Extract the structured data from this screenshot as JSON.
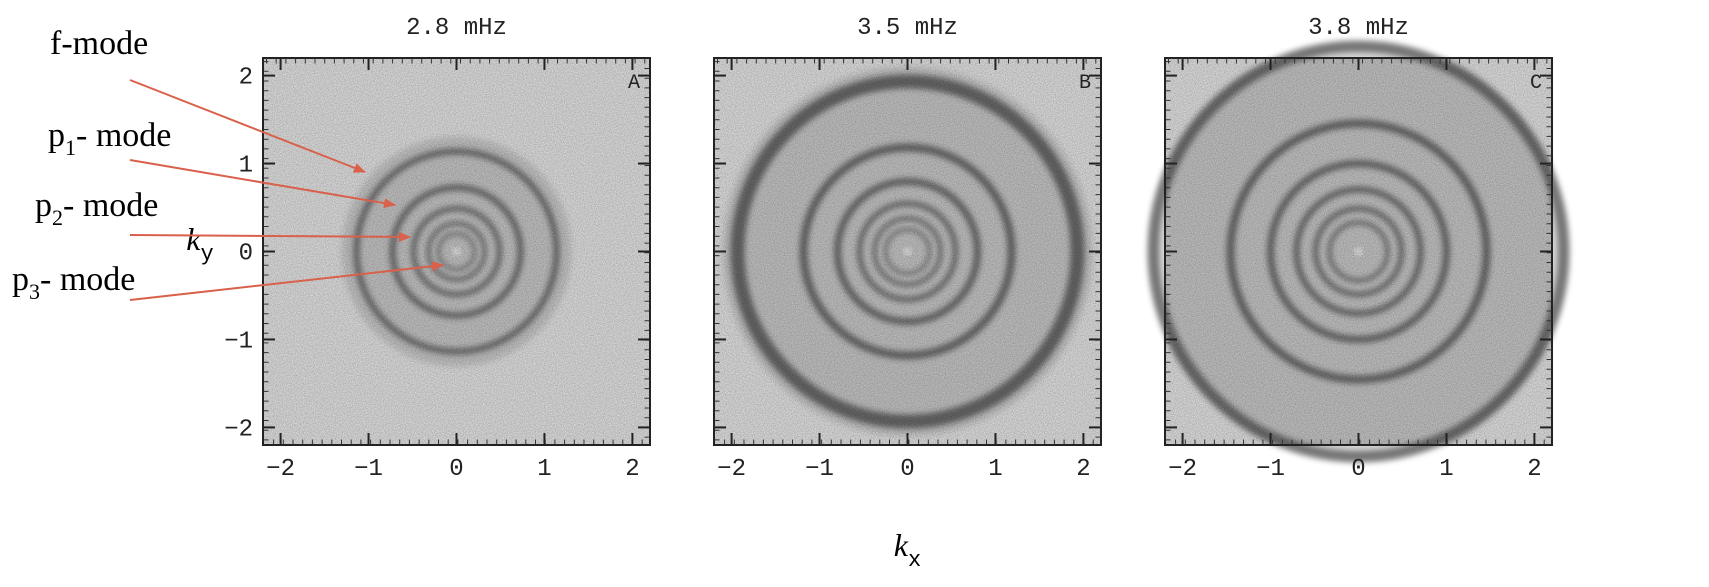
{
  "chart_data": [
    {
      "type": "image",
      "title": "2.8 mHz",
      "panel_label": "A",
      "xlim": [
        -2.2,
        2.2
      ],
      "ylim": [
        -2.2,
        2.2
      ],
      "xticks": [
        {
          "value": -2,
          "label": "−2"
        },
        {
          "value": -1,
          "label": "−1"
        },
        0,
        1,
        2
      ],
      "yticks": [
        {
          "value": -2,
          "label": "−2"
        },
        {
          "value": -1,
          "label": "−1"
        },
        0,
        1,
        2
      ],
      "show_yticklabels": true,
      "ylabel": {
        "text": "k",
        "sub": "y"
      },
      "annotations": [
        {
          "text": "f-mode"
        },
        {
          "text": "p",
          "sub": "1",
          "suffix": "- mode"
        },
        {
          "text": "p",
          "sub": "2",
          "suffix": "- mode"
        },
        {
          "text": "p",
          "sub": "3",
          "suffix": "- mode"
        }
      ]
    },
    {
      "type": "image",
      "title": "3.5 mHz",
      "panel_label": "B",
      "xlim": [
        -2.2,
        2.2
      ],
      "ylim": [
        -2.2,
        2.2
      ],
      "xticks": [
        {
          "value": -2,
          "label": "−2"
        },
        {
          "value": -1,
          "label": "−1"
        },
        0,
        1,
        2
      ],
      "yticks": [
        {
          "value": -2,
          "label": "−2"
        },
        {
          "value": -1,
          "label": "−1"
        },
        0,
        1,
        2
      ],
      "show_yticklabels": false,
      "xlabel": {
        "text": "k",
        "sub": "x"
      }
    },
    {
      "type": "image",
      "title": "3.8 mHz",
      "panel_label": "C",
      "xlim": [
        -2.2,
        2.2
      ],
      "ylim": [
        -2.2,
        2.2
      ],
      "xticks": [
        {
          "value": -2,
          "label": "−2"
        },
        {
          "value": -1,
          "label": "−1"
        },
        0,
        1,
        2
      ],
      "yticks": [
        {
          "value": -2,
          "label": "−2"
        },
        {
          "value": -1,
          "label": "−1"
        },
        0,
        1,
        2
      ],
      "show_yticklabels": false
    }
  ]
}
